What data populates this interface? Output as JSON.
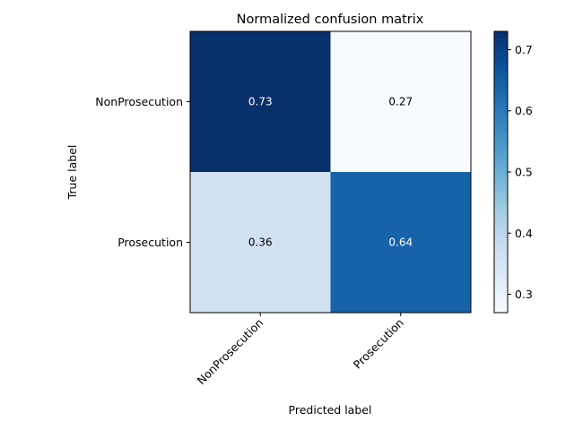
{
  "chart_data": {
    "type": "heatmap",
    "title": "Normalized confusion matrix",
    "xlabel": "Predicted label",
    "ylabel": "True label",
    "x_categories": [
      "NonProsecution",
      "Prosecution"
    ],
    "y_categories": [
      "NonProsecution",
      "Prosecution"
    ],
    "values": [
      [
        0.73,
        0.27
      ],
      [
        0.36,
        0.64
      ]
    ],
    "value_labels": [
      [
        "0.73",
        "0.27"
      ],
      [
        "0.36",
        "0.64"
      ]
    ],
    "colormap": "Blues",
    "colorbar": {
      "range": [
        0.27,
        0.73
      ],
      "ticks": [
        0.3,
        0.4,
        0.5,
        0.6,
        0.7
      ],
      "tick_labels": [
        "0.3",
        "0.4",
        "0.5",
        "0.6",
        "0.7"
      ]
    },
    "text_colors": {
      "dark": "#ffffff",
      "light": "#000000"
    }
  }
}
